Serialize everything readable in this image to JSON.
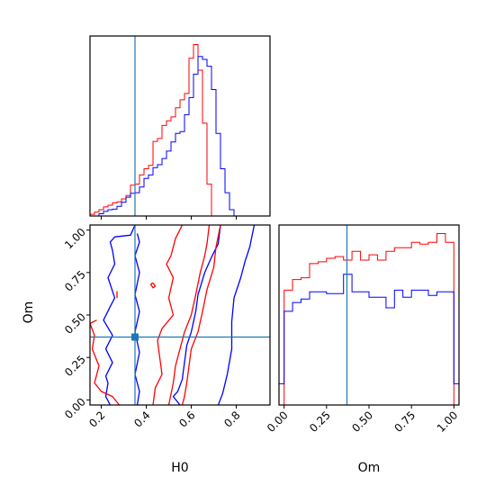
{
  "chart_data": {
    "type": "corner",
    "parameters": [
      "H0",
      "Om"
    ],
    "colors": {
      "series_a": "#ff0000",
      "series_b": "#0000ff",
      "truth": "#1f77b4"
    },
    "truth": {
      "H0": 0.35,
      "Om": 0.37
    },
    "panels": [
      {
        "id": "hist-H0",
        "type": "step-histogram",
        "xlim": [
          0.15,
          0.95
        ],
        "x_ticks": [
          0.2,
          0.4,
          0.6,
          0.8
        ],
        "x_tick_labels_shown": false,
        "bin_edges": [
          0.15,
          0.17,
          0.19,
          0.21,
          0.23,
          0.25,
          0.27,
          0.29,
          0.31,
          0.33,
          0.35,
          0.37,
          0.39,
          0.41,
          0.43,
          0.45,
          0.47,
          0.49,
          0.51,
          0.53,
          0.55,
          0.57,
          0.59,
          0.61,
          0.63,
          0.65,
          0.67,
          0.69,
          0.71,
          0.73,
          0.75,
          0.77,
          0.79,
          0.81,
          0.83,
          0.85,
          0.87,
          0.89,
          0.91,
          0.93,
          0.95
        ],
        "series": [
          {
            "color": "red",
            "counts": [
              0.3,
              0.7,
              1.1,
              1.6,
              1.9,
              2.3,
              2.5,
              3,
              3.6,
              5.4,
              5.6,
              7.2,
              8.3,
              8.9,
              13.1,
              13.6,
              15.9,
              16.7,
              17.4,
              19,
              20.4,
              21.5,
              27.7,
              30.1,
              25.6,
              16.3,
              5.6,
              0,
              0,
              0,
              0,
              0,
              0,
              0,
              0,
              0,
              0,
              0,
              0,
              0
            ]
          },
          {
            "color": "blue",
            "counts": [
              0,
              0,
              0.4,
              0.8,
              1.1,
              1.2,
              1.7,
              2.4,
              3.3,
              4,
              4.1,
              5.1,
              6.6,
              7.2,
              8.5,
              9,
              10.1,
              11.4,
              13,
              14.5,
              14.8,
              17.8,
              20.8,
              24.9,
              28,
              27.5,
              26.3,
              22.2,
              14.5,
              8.3,
              4.1,
              1.1,
              0,
              0,
              0,
              0,
              0,
              0,
              0,
              0
            ]
          }
        ]
      },
      {
        "id": "contour-H0-Om",
        "type": "contour",
        "xlim": [
          0.15,
          0.95
        ],
        "ylim": [
          -0.03,
          1.03
        ],
        "x_ticks": [
          0.2,
          0.4,
          0.6,
          0.8
        ],
        "x_tick_labels": [
          "0.2",
          "0.4",
          "0.6",
          "0.8"
        ],
        "y_ticks": [
          0,
          0.25,
          0.5,
          0.75,
          1
        ],
        "y_tick_labels": [
          "0.00",
          "0.25",
          "0.50",
          "0.75",
          "1.00"
        ],
        "xlabel": "H0",
        "ylabel": "Om",
        "series": [
          {
            "color": "blue",
            "contours": [
              [
                [
                  0.35,
                  1.03
                ],
                [
                  0.33,
                  0.97
                ],
                [
                  0.26,
                  0.96
                ],
                [
                  0.24,
                  0.93
                ],
                [
                  0.25,
                  0.88
                ],
                [
                  0.26,
                  0.8
                ],
                [
                  0.23,
                  0.72
                ],
                [
                  0.26,
                  0.6
                ],
                [
                  0.24,
                  0.55
                ],
                [
                  0.21,
                  0.47
                ],
                [
                  0.25,
                  0.38
                ],
                [
                  0.22,
                  0.3
                ],
                [
                  0.25,
                  0.22
                ],
                [
                  0.22,
                  0.14
                ],
                [
                  0.23,
                  0.1
                ],
                [
                  0.22,
                  0.02
                ],
                [
                  0.24,
                  -0.03
                ]
              ],
              [
                [
                  0.88,
                  1.03
                ],
                [
                  0.86,
                  0.9
                ],
                [
                  0.84,
                  0.82
                ],
                [
                  0.82,
                  0.72
                ],
                [
                  0.79,
                  0.6
                ],
                [
                  0.78,
                  0.46
                ],
                [
                  0.78,
                  0.3
                ],
                [
                  0.76,
                  0.15
                ],
                [
                  0.74,
                  0.04
                ],
                [
                  0.72,
                  -0.03
                ]
              ],
              [
                [
                  0.73,
                  1.03
                ],
                [
                  0.72,
                  0.92
                ],
                [
                  0.69,
                  0.84
                ],
                [
                  0.66,
                  0.75
                ],
                [
                  0.63,
                  0.62
                ],
                [
                  0.62,
                  0.52
                ],
                [
                  0.6,
                  0.4
                ],
                [
                  0.58,
                  0.32
                ],
                [
                  0.57,
                  0.22
                ],
                [
                  0.56,
                  0.12
                ],
                [
                  0.54,
                  0.05
                ],
                [
                  0.52,
                  0.02
                ],
                [
                  0.55,
                  -0.03
                ]
              ],
              [
                [
                  0.36,
                  0.98
                ],
                [
                  0.37,
                  0.93
                ],
                [
                  0.35,
                  0.85
                ],
                [
                  0.37,
                  0.75
                ],
                [
                  0.35,
                  0.62
                ],
                [
                  0.37,
                  0.52
                ],
                [
                  0.35,
                  0.4
                ],
                [
                  0.37,
                  0.28
                ],
                [
                  0.35,
                  0.15
                ],
                [
                  0.37,
                  0.05
                ],
                [
                  0.36,
                  -0.03
                ]
              ]
            ]
          },
          {
            "color": "red",
            "contours": [
              [
                [
                  0.18,
                  0.47
                ],
                [
                  0.15,
                  0.45
                ],
                [
                  0.17,
                  0.38
                ],
                [
                  0.16,
                  0.3
                ],
                [
                  0.19,
                  0.2
                ],
                [
                  0.17,
                  0.1
                ],
                [
                  0.2,
                  0.05
                ],
                [
                  0.25,
                  0.02
                ],
                [
                  0.28,
                  -0.03
                ]
              ],
              [
                [
                  0.56,
                  1.03
                ],
                [
                  0.53,
                  0.95
                ],
                [
                  0.51,
                  0.85
                ],
                [
                  0.49,
                  0.8
                ],
                [
                  0.52,
                  0.72
                ],
                [
                  0.5,
                  0.6
                ],
                [
                  0.52,
                  0.5
                ],
                [
                  0.47,
                  0.42
                ],
                [
                  0.45,
                  0.35
                ],
                [
                  0.46,
                  0.25
                ],
                [
                  0.47,
                  0.15
                ],
                [
                  0.44,
                  0.07
                ],
                [
                  0.43,
                  -0.03
                ]
              ],
              [
                [
                  0.68,
                  1.03
                ],
                [
                  0.67,
                  0.92
                ],
                [
                  0.66,
                  0.85
                ],
                [
                  0.64,
                  0.75
                ],
                [
                  0.62,
                  0.62
                ],
                [
                  0.6,
                  0.5
                ],
                [
                  0.57,
                  0.4
                ],
                [
                  0.55,
                  0.3
                ],
                [
                  0.53,
                  0.2
                ],
                [
                  0.52,
                  0.1
                ],
                [
                  0.5,
                  -0.03
                ]
              ],
              [
                [
                  0.73,
                  1.03
                ],
                [
                  0.71,
                  0.9
                ],
                [
                  0.7,
                  0.78
                ],
                [
                  0.67,
                  0.65
                ],
                [
                  0.65,
                  0.52
                ],
                [
                  0.63,
                  0.4
                ],
                [
                  0.6,
                  0.3
                ],
                [
                  0.59,
                  0.2
                ],
                [
                  0.58,
                  0.1
                ],
                [
                  0.57,
                  0.02
                ],
                [
                  0.56,
                  -0.03
                ]
              ],
              [
                [
                  0.43,
                  0.69
                ],
                [
                  0.44,
                  0.67
                ],
                [
                  0.43,
                  0.66
                ],
                [
                  0.42,
                  0.68
                ],
                [
                  0.43,
                  0.69
                ]
              ],
              [
                [
                  0.27,
                  0.6
                ],
                [
                  0.27,
                  0.64
                ]
              ]
            ]
          }
        ]
      },
      {
        "id": "hist-Om",
        "type": "step-histogram",
        "xlim": [
          -0.03,
          1.03
        ],
        "x_ticks": [
          0,
          0.25,
          0.5,
          0.75,
          1
        ],
        "x_tick_labels": [
          "0.00",
          "0.25",
          "0.50",
          "0.75",
          "1.00"
        ],
        "xlabel": "Om",
        "bin_edges": [
          -0.03,
          0.0,
          0.05,
          0.1,
          0.15,
          0.2,
          0.25,
          0.3,
          0.35,
          0.4,
          0.45,
          0.5,
          0.55,
          0.6,
          0.65,
          0.7,
          0.75,
          0.8,
          0.85,
          0.9,
          0.95,
          1.0,
          1.03
        ],
        "series": [
          {
            "color": "red",
            "counts": [
              0,
              65,
              71,
              72,
              80,
              81,
              83,
              84,
              82,
              87,
              82,
              85,
              82,
              87,
              89,
              89,
              92,
              91,
              92,
              97,
              92,
              0
            ]
          },
          {
            "color": "blue",
            "counts": [
              12,
              53,
              58,
              60,
              64,
              64,
              63,
              63,
              74,
              64,
              64,
              61,
              61,
              55,
              65,
              61,
              65,
              65,
              62,
              64,
              64,
              12
            ]
          }
        ]
      }
    ]
  }
}
